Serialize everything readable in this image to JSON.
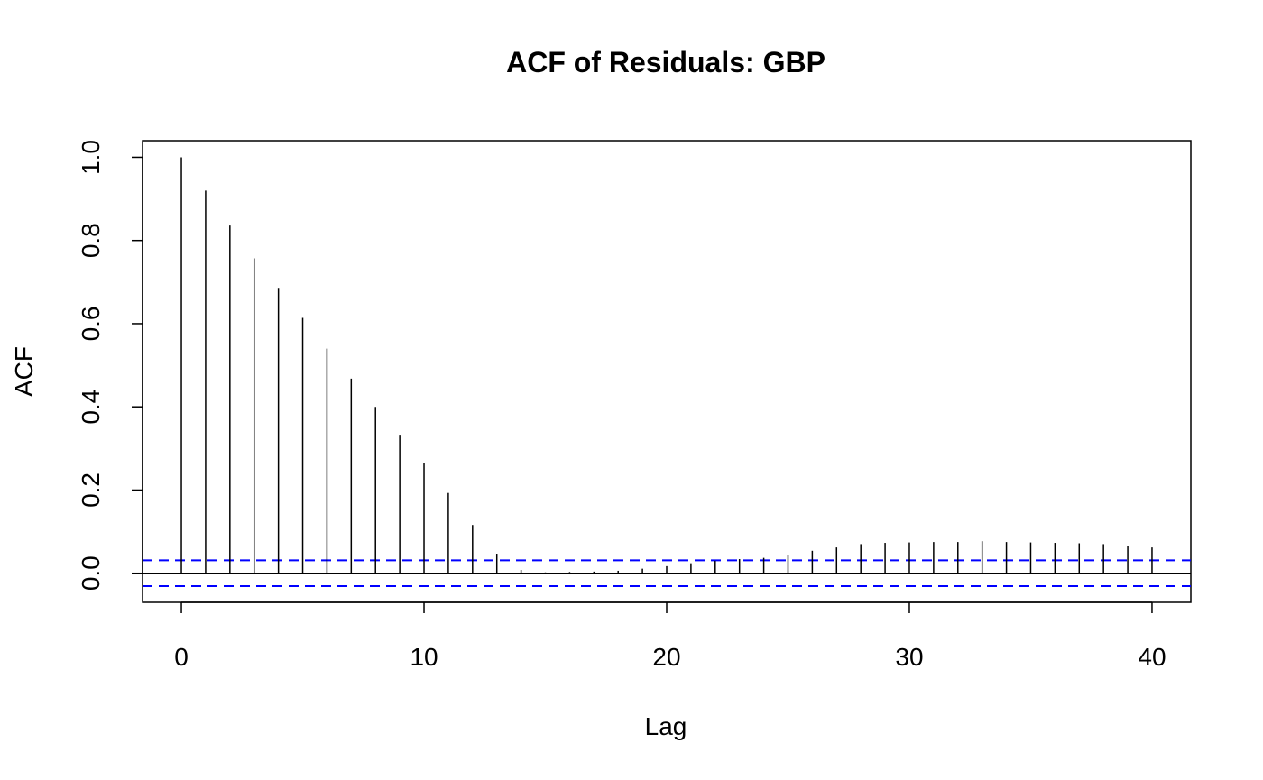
{
  "chart_data": {
    "type": "bar",
    "title": "ACF of Residuals: GBP",
    "xlabel": "Lag",
    "ylabel": "ACF",
    "xlim": [
      -1.6,
      41.6
    ],
    "ylim": [
      -0.07,
      1.04
    ],
    "x_ticks": [
      0,
      10,
      20,
      30,
      40
    ],
    "x_tick_labels": [
      "0",
      "10",
      "20",
      "30",
      "40"
    ],
    "y_ticks": [
      0.0,
      0.2,
      0.4,
      0.6,
      0.8,
      1.0
    ],
    "y_tick_labels": [
      "0.0",
      "0.2",
      "0.4",
      "0.6",
      "0.8",
      "1.0"
    ],
    "lags": [
      0,
      1,
      2,
      3,
      4,
      5,
      6,
      7,
      8,
      9,
      10,
      11,
      12,
      13,
      14,
      15,
      16,
      17,
      18,
      19,
      20,
      21,
      22,
      23,
      24,
      25,
      26,
      27,
      28,
      29,
      30,
      31,
      32,
      33,
      34,
      35,
      36,
      37,
      38,
      39,
      40
    ],
    "acf": [
      1.0,
      0.92,
      0.836,
      0.757,
      0.686,
      0.614,
      0.54,
      0.468,
      0.4,
      0.333,
      0.265,
      0.193,
      0.116,
      0.047,
      0.008,
      0.002,
      0.003,
      0.004,
      0.006,
      0.011,
      0.017,
      0.024,
      0.03,
      0.034,
      0.037,
      0.043,
      0.054,
      0.062,
      0.07,
      0.073,
      0.074,
      0.075,
      0.075,
      0.077,
      0.075,
      0.074,
      0.073,
      0.072,
      0.07,
      0.066,
      0.062
    ],
    "confidence_bound": 0.031,
    "colors": {
      "bars": "#000000",
      "confidence": "#0000ff",
      "zero_line": "#000000"
    },
    "grid": false
  }
}
